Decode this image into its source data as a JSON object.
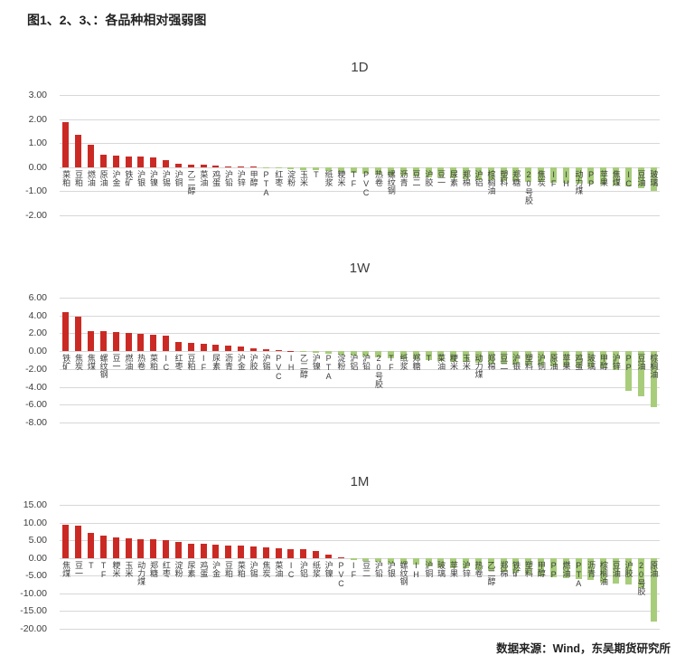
{
  "page": {
    "title": "图1、2、3、：各品种相对强弱图",
    "source_note": "数据来源：Wind，东吴期货研究所"
  },
  "colors": {
    "positive": "#cb2a24",
    "negative": "#a7cd7a",
    "gridline": "#d7d7d7",
    "axis_text": "#3d3d3d"
  },
  "chart_data": [
    {
      "type": "bar",
      "title": "1D",
      "ylim": [
        -2,
        3
      ],
      "yticks": [
        3,
        2,
        1,
        0,
        -1,
        -2
      ],
      "grid": true,
      "legend": "none",
      "categories": [
        "菜粕",
        "豆粕",
        "燃油",
        "原油",
        "沪金",
        "铁矿",
        "沪银",
        "沪镍",
        "沪锡",
        "沪铜",
        "乙二醇",
        "菜油",
        "鸡蛋",
        "沪铅",
        "沪锌",
        "甲醇",
        "PTA",
        "红枣",
        "淀粉",
        "玉米",
        "T",
        "纸浆",
        "粳米",
        "TF",
        "PVC",
        "热卷",
        "螺纹钢",
        "沥青",
        "豆二",
        "沪胶",
        "豆一",
        "尿素",
        "郑棉",
        "沪铝",
        "棕榈油",
        "塑料",
        "郑糖",
        "20号胶",
        "焦炭",
        "IF",
        "IH",
        "动力煤",
        "PP",
        "苹果",
        "焦煤",
        "IC",
        "豆油",
        "玻璃"
      ],
      "values": [
        1.88,
        1.35,
        0.95,
        0.52,
        0.5,
        0.46,
        0.44,
        0.42,
        0.28,
        0.13,
        0.11,
        0.09,
        0.07,
        0.05,
        0.04,
        0.02,
        -0.03,
        -0.06,
        -0.09,
        -0.12,
        -0.14,
        -0.17,
        -0.2,
        -0.22,
        -0.26,
        -0.3,
        -0.33,
        -0.36,
        -0.39,
        -0.42,
        -0.44,
        -0.47,
        -0.5,
        -0.52,
        -0.54,
        -0.56,
        -0.58,
        -0.6,
        -0.62,
        -0.64,
        -0.66,
        -0.68,
        -0.7,
        -0.73,
        -0.76,
        -0.8,
        -0.88,
        -1.0
      ]
    },
    {
      "type": "bar",
      "title": "1W",
      "ylim": [
        -8,
        6
      ],
      "yticks": [
        6,
        4,
        2,
        0,
        -2,
        -4,
        -6,
        -8
      ],
      "grid": true,
      "legend": "none",
      "categories": [
        "铁矿",
        "焦炭",
        "焦煤",
        "螺纹钢",
        "豆一",
        "燃油",
        "热卷",
        "菜粕",
        "IC",
        "红枣",
        "豆粕",
        "IF",
        "尿素",
        "沥青",
        "沪金",
        "沪胶",
        "沪锡",
        "PVC",
        "IH",
        "乙二醇",
        "沪镍",
        "PTA",
        "淀粉",
        "沪铝",
        "沪铅",
        "20号胶",
        "TF",
        "纸浆",
        "郑糖",
        "T",
        "菜油",
        "粳米",
        "玉米",
        "动力煤",
        "郑棉",
        "豆二",
        "沪银",
        "塑料",
        "沪铜",
        "原油",
        "苹果",
        "鸡蛋",
        "玻璃",
        "甲醇",
        "沪锌",
        "PP",
        "豆油",
        "棕榈油"
      ],
      "values": [
        4.35,
        3.9,
        2.3,
        2.25,
        2.2,
        2.05,
        1.9,
        1.8,
        1.75,
        1.05,
        0.95,
        0.85,
        0.68,
        0.62,
        0.48,
        0.36,
        0.24,
        0.14,
        0.06,
        -0.1,
        -0.2,
        -0.3,
        -0.42,
        -0.52,
        -0.62,
        -0.72,
        -0.8,
        -0.88,
        -0.95,
        -1.02,
        -1.1,
        -1.18,
        -1.26,
        -1.33,
        -1.4,
        -1.46,
        -1.52,
        -1.57,
        -1.62,
        -1.67,
        -1.72,
        -1.78,
        -1.84,
        -1.92,
        -2.1,
        -4.5,
        -5.1,
        -6.3
      ]
    },
    {
      "type": "bar",
      "title": "1M",
      "ylim": [
        -20,
        15
      ],
      "yticks": [
        15,
        10,
        5,
        0,
        -5,
        -10,
        -15,
        -20
      ],
      "grid": true,
      "legend": "none",
      "categories": [
        "焦煤",
        "豆一",
        "T",
        "TF",
        "粳米",
        "玉米",
        "动力煤",
        "郑糖",
        "红枣",
        "淀粉",
        "尿素",
        "鸡蛋",
        "沪金",
        "豆粕",
        "菜粕",
        "沪锡",
        "焦炭",
        "菜油",
        "IC",
        "沪铝",
        "纸浆",
        "沪镍",
        "PVC",
        "IF",
        "豆二",
        "沪铅",
        "沪银",
        "螺纹钢",
        "IH",
        "沪铜",
        "玻璃",
        "苹果",
        "沪锌",
        "热卷",
        "乙二醇",
        "郑棉",
        "铁矿",
        "塑料",
        "甲醇",
        "PP",
        "燃油",
        "PTA",
        "沥青",
        "棕榈油",
        "豆油",
        "沪胶",
        "20号胶",
        "原油"
      ],
      "values": [
        9.4,
        9.2,
        7.2,
        6.2,
        5.9,
        5.6,
        5.3,
        5.2,
        5.0,
        4.6,
        4.0,
        3.9,
        3.7,
        3.6,
        3.4,
        3.3,
        2.9,
        2.8,
        2.6,
        2.5,
        1.9,
        0.9,
        0.15,
        -0.5,
        -0.8,
        -1.1,
        -1.5,
        -1.7,
        -2.0,
        -2.3,
        -2.6,
        -2.8,
        -3.0,
        -3.3,
        -3.6,
        -4.0,
        -4.3,
        -4.8,
        -5.2,
        -5.4,
        -5.6,
        -6.0,
        -6.3,
        -7.0,
        -7.2,
        -7.6,
        -8.5,
        -18.0
      ]
    }
  ]
}
